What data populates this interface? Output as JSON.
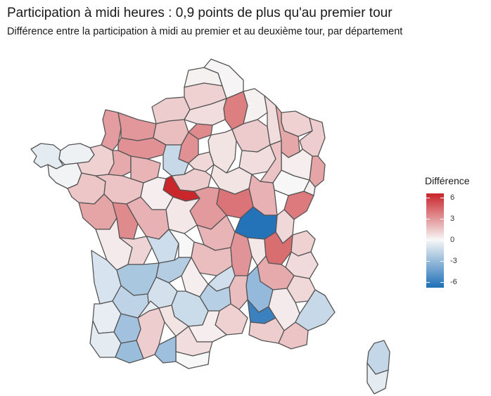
{
  "header": {
    "title": "Participation à midi heures : 0,9 points de plus qu'au premier tour",
    "subtitle": "Différence entre la participation à midi au premier et au deuxième tour, par département"
  },
  "legend": {
    "title": "Différence",
    "ticks": [
      {
        "label": "6",
        "value": 6
      },
      {
        "label": "3",
        "value": 3
      },
      {
        "label": "0",
        "value": 0
      },
      {
        "label": "-3",
        "value": -3
      },
      {
        "label": "-6",
        "value": -6
      }
    ],
    "min": -6.8,
    "max": 6.6,
    "colors": {
      "low": "#1e6fb7",
      "mid": "#f7f7f7",
      "high": "#c9242a"
    }
  },
  "map_data": {
    "variable": "Différence",
    "departments": [
      {
        "id": "29",
        "value": -0.6
      },
      {
        "id": "22",
        "value": -0.3
      },
      {
        "id": "56",
        "value": -0.2
      },
      {
        "id": "35",
        "value": 1.2
      },
      {
        "id": "44",
        "value": 1.5
      },
      {
        "id": "50",
        "value": 2.8
      },
      {
        "id": "14",
        "value": 3.0
      },
      {
        "id": "61",
        "value": 3.2
      },
      {
        "id": "53",
        "value": 2.4
      },
      {
        "id": "72",
        "value": 2.1
      },
      {
        "id": "49",
        "value": 1.6
      },
      {
        "id": "85",
        "value": 2.6
      },
      {
        "id": "76",
        "value": 1.3
      },
      {
        "id": "27",
        "value": 1.8
      },
      {
        "id": "80",
        "value": 1.2
      },
      {
        "id": "62",
        "value": 0.2
      },
      {
        "id": "59",
        "value": 0.1
      },
      {
        "id": "02",
        "value": 3.8
      },
      {
        "id": "60",
        "value": 0.8
      },
      {
        "id": "95",
        "value": 3.4
      },
      {
        "id": "78",
        "value": 3.2
      },
      {
        "id": "28",
        "value": -1.5
      },
      {
        "id": "91",
        "value": 1.0
      },
      {
        "id": "77",
        "value": 0.6
      },
      {
        "id": "08",
        "value": 0.2
      },
      {
        "id": "51",
        "value": 1.4
      },
      {
        "id": "55",
        "value": 0.8
      },
      {
        "id": "57",
        "value": 1.2
      },
      {
        "id": "54",
        "value": 2.5
      },
      {
        "id": "67",
        "value": 1.3
      },
      {
        "id": "68",
        "value": 2.6
      },
      {
        "id": "88",
        "value": 0.3
      },
      {
        "id": "10",
        "value": 0.8
      },
      {
        "id": "52",
        "value": 1.6
      },
      {
        "id": "70",
        "value": 0.0
      },
      {
        "id": "90",
        "value": 0.2
      },
      {
        "id": "25",
        "value": 3.9
      },
      {
        "id": "39",
        "value": 1.0
      },
      {
        "id": "89",
        "value": 0.6
      },
      {
        "id": "21",
        "value": 2.2
      },
      {
        "id": "58",
        "value": 4.1
      },
      {
        "id": "71",
        "value": -6.6
      },
      {
        "id": "45",
        "value": 1.3
      },
      {
        "id": "41",
        "value": 6.5
      },
      {
        "id": "37",
        "value": 0.3
      },
      {
        "id": "18",
        "value": 2.9
      },
      {
        "id": "36",
        "value": 0.5
      },
      {
        "id": "86",
        "value": 2.2
      },
      {
        "id": "79",
        "value": 3.4
      },
      {
        "id": "17",
        "value": 0.4
      },
      {
        "id": "16",
        "value": 1.1
      },
      {
        "id": "87",
        "value": -1.3
      },
      {
        "id": "23",
        "value": 0.0
      },
      {
        "id": "03",
        "value": 2.1
      },
      {
        "id": "63",
        "value": 1.8
      },
      {
        "id": "42",
        "value": 3.1
      },
      {
        "id": "69",
        "value": 0.5
      },
      {
        "id": "01",
        "value": 4.3
      },
      {
        "id": "74",
        "value": 1.2
      },
      {
        "id": "73",
        "value": 0.9
      },
      {
        "id": "38",
        "value": 2.4
      },
      {
        "id": "26",
        "value": -3.1
      },
      {
        "id": "07",
        "value": 1.8
      },
      {
        "id": "43",
        "value": -1.2
      },
      {
        "id": "15",
        "value": 0.3
      },
      {
        "id": "19",
        "value": -2.1
      },
      {
        "id": "24",
        "value": -2.4
      },
      {
        "id": "33",
        "value": -1.0
      },
      {
        "id": "40",
        "value": -0.5
      },
      {
        "id": "47",
        "value": -1.8
      },
      {
        "id": "46",
        "value": -1.1
      },
      {
        "id": "12",
        "value": -1.4
      },
      {
        "id": "48",
        "value": -2.0
      },
      {
        "id": "30",
        "value": 1.2
      },
      {
        "id": "84",
        "value": -5.9
      },
      {
        "id": "13",
        "value": 1.3
      },
      {
        "id": "83",
        "value": 1.6
      },
      {
        "id": "04",
        "value": 0.4
      },
      {
        "id": "05",
        "value": 1.0
      },
      {
        "id": "06",
        "value": -1.5
      },
      {
        "id": "34",
        "value": 0.3
      },
      {
        "id": "11",
        "value": 0.8
      },
      {
        "id": "66",
        "value": 0.0
      },
      {
        "id": "09",
        "value": -2.8
      },
      {
        "id": "31",
        "value": 1.3
      },
      {
        "id": "32",
        "value": -2.7
      },
      {
        "id": "82",
        "value": -0.5
      },
      {
        "id": "81",
        "value": 0.6
      },
      {
        "id": "64",
        "value": -0.6
      },
      {
        "id": "65",
        "value": -2.9
      },
      {
        "id": "2A",
        "value": -0.6
      },
      {
        "id": "2B",
        "value": -1.6
      }
    ]
  }
}
